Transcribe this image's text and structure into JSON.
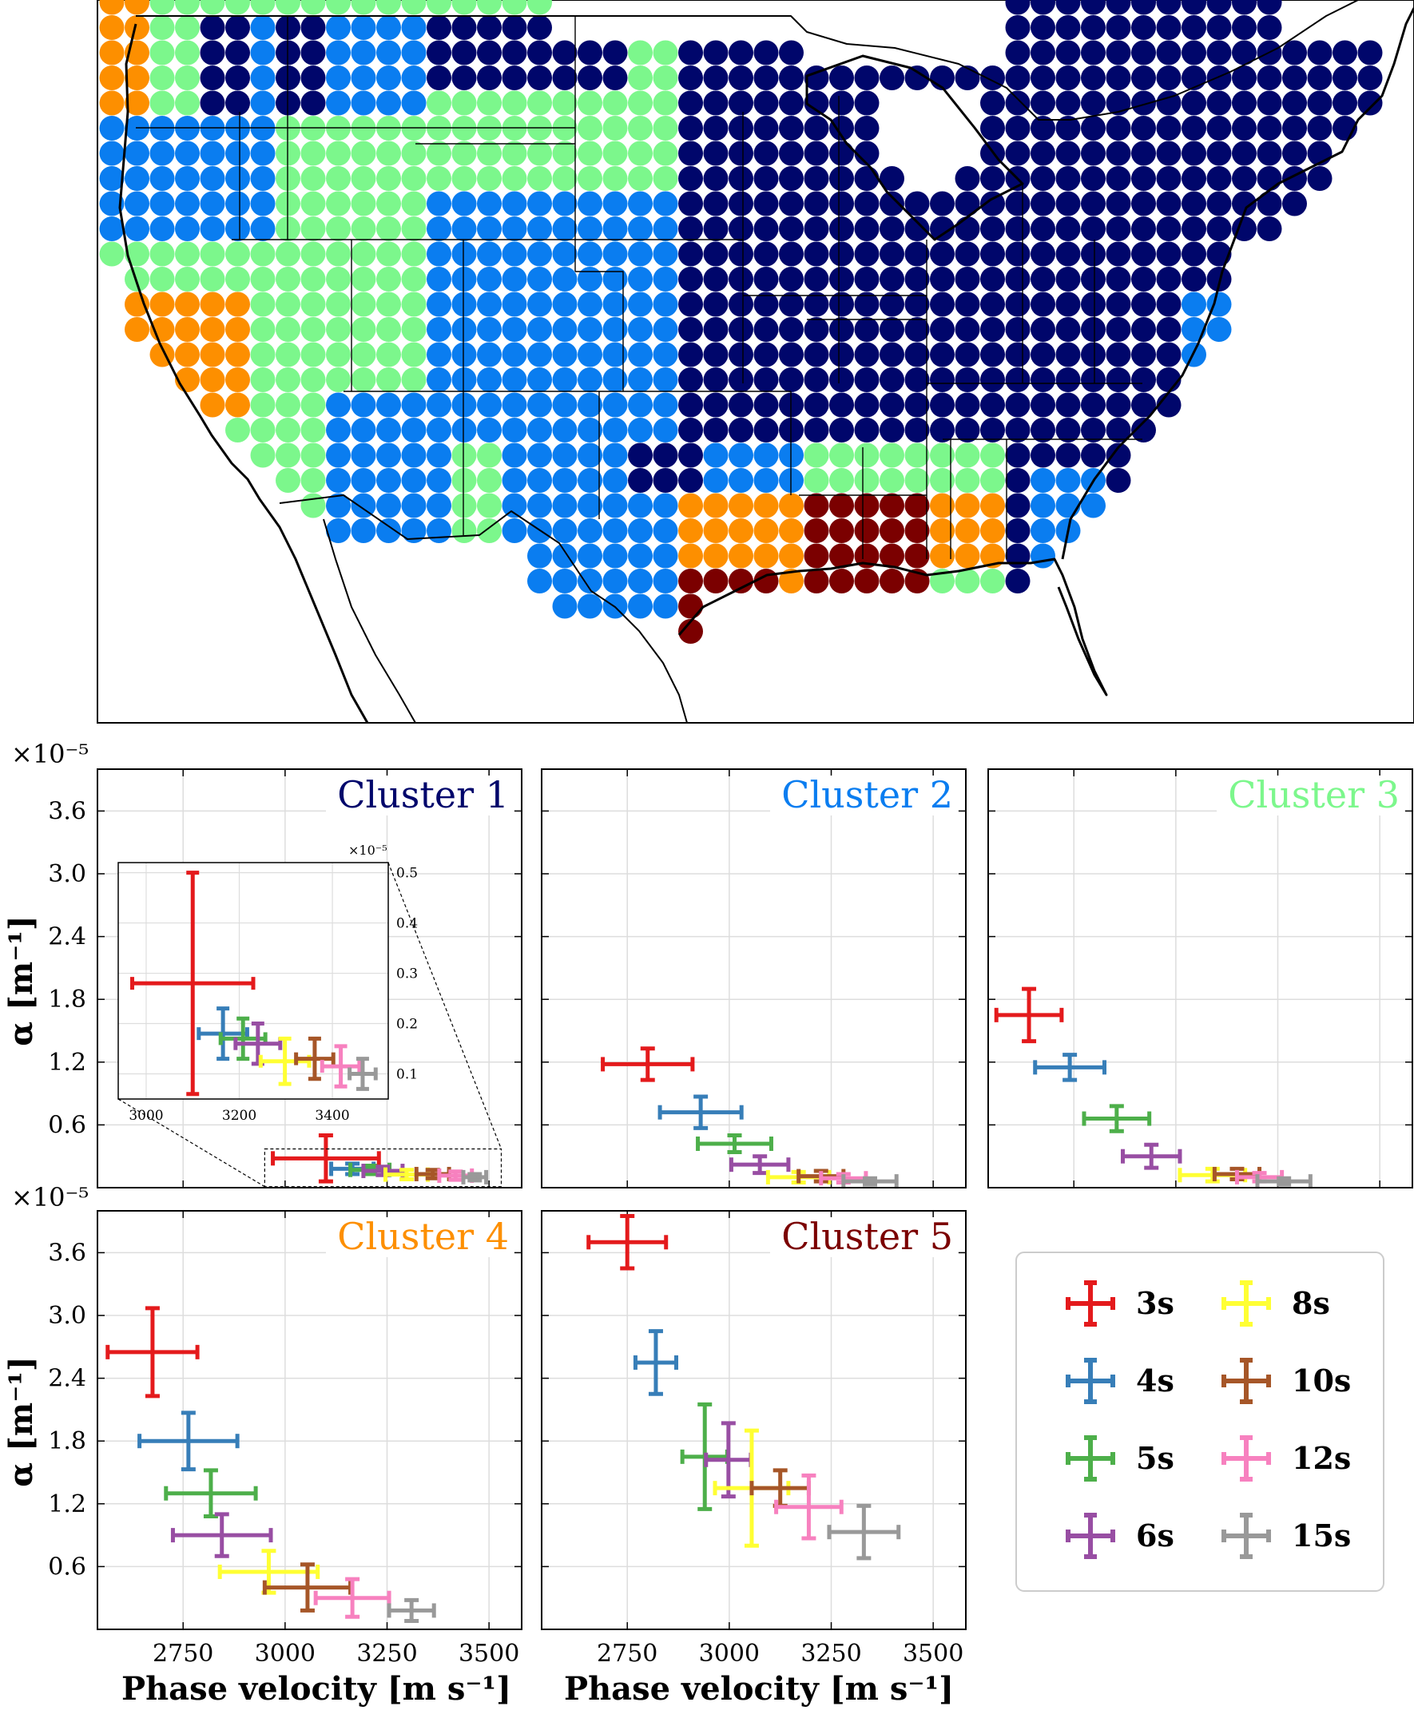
{
  "map": {
    "cluster_colors": {
      "1": "#00066b",
      "2": "#0a7df0",
      "3": "#7cf78c",
      "4": "#fd8f00",
      "5": "#7b0000"
    },
    "land_color": "#ffffff",
    "border_color": "#000000"
  },
  "axis_labels": {
    "x": "Phase velocity [m s⁻¹]",
    "y": "α [m⁻¹]",
    "offset": "×10⁻⁵"
  },
  "inset": {
    "offset": "×10⁻⁵",
    "xticks": [
      3000,
      3200,
      3400
    ],
    "yticks": [
      0.1,
      0.2,
      0.3,
      0.4,
      0.5
    ]
  },
  "legend": {
    "entries": [
      {
        "label": "3s",
        "color": "#e41a1c"
      },
      {
        "label": "4s",
        "color": "#377eb8"
      },
      {
        "label": "5s",
        "color": "#4daf4a"
      },
      {
        "label": "6s",
        "color": "#984ea3"
      },
      {
        "label": "8s",
        "color": "#ffff33"
      },
      {
        "label": "10s",
        "color": "#a65628"
      },
      {
        "label": "12s",
        "color": "#f781bf"
      },
      {
        "label": "15s",
        "color": "#999999"
      }
    ]
  },
  "chart_data": [
    {
      "type": "scatter",
      "title": "Cluster 1",
      "title_color": "#00066b",
      "xlim": [
        2540,
        3580
      ],
      "ylim": [
        0,
        4.0
      ],
      "xticks": [
        2750,
        3000,
        3250,
        3500
      ],
      "yticks": [
        0.6,
        1.2,
        1.8,
        2.4,
        3.0,
        3.6
      ],
      "y_unit_exponent": -5,
      "series": [
        {
          "name": "3s",
          "x": 3100,
          "y": 0.28,
          "xerr": 130,
          "yerr": 0.22
        },
        {
          "name": "4s",
          "x": 3165,
          "y": 0.18,
          "xerr": 52,
          "yerr": 0.05
        },
        {
          "name": "5s",
          "x": 3208,
          "y": 0.17,
          "xerr": 48,
          "yerr": 0.04
        },
        {
          "name": "6s",
          "x": 3240,
          "y": 0.16,
          "xerr": 48,
          "yerr": 0.04
        },
        {
          "name": "8s",
          "x": 3298,
          "y": 0.125,
          "xerr": 52,
          "yerr": 0.045
        },
        {
          "name": "10s",
          "x": 3362,
          "y": 0.13,
          "xerr": 40,
          "yerr": 0.04
        },
        {
          "name": "12s",
          "x": 3418,
          "y": 0.115,
          "xerr": 40,
          "yerr": 0.04
        },
        {
          "name": "15s",
          "x": 3465,
          "y": 0.1,
          "xerr": 28,
          "yerr": 0.03
        }
      ]
    },
    {
      "type": "scatter",
      "title": "Cluster 2",
      "title_color": "#0a7df0",
      "xlim": [
        2540,
        3580
      ],
      "ylim": [
        0,
        4.0
      ],
      "xticks": [
        2750,
        3000,
        3250,
        3500
      ],
      "yticks": [
        0.6,
        1.2,
        1.8,
        2.4,
        3.0,
        3.6
      ],
      "y_unit_exponent": -5,
      "series": [
        {
          "name": "3s",
          "x": 2800,
          "y": 1.18,
          "xerr": 110,
          "yerr": 0.15
        },
        {
          "name": "4s",
          "x": 2930,
          "y": 0.72,
          "xerr": 100,
          "yerr": 0.15
        },
        {
          "name": "5s",
          "x": 3013,
          "y": 0.42,
          "xerr": 90,
          "yerr": 0.08
        },
        {
          "name": "6s",
          "x": 3075,
          "y": 0.22,
          "xerr": 70,
          "yerr": 0.08
        },
        {
          "name": "8s",
          "x": 3170,
          "y": 0.1,
          "xerr": 75,
          "yerr": 0.05
        },
        {
          "name": "10s",
          "x": 3225,
          "y": 0.11,
          "xerr": 55,
          "yerr": 0.05
        },
        {
          "name": "12s",
          "x": 3280,
          "y": 0.09,
          "xerr": 55,
          "yerr": 0.04
        },
        {
          "name": "15s",
          "x": 3345,
          "y": 0.06,
          "xerr": 65,
          "yerr": 0.03
        }
      ]
    },
    {
      "type": "scatter",
      "title": "Cluster 3",
      "title_color": "#7cf78c",
      "xlim": [
        2540,
        3580
      ],
      "ylim": [
        0,
        4.0
      ],
      "xticks": [
        2750,
        3000,
        3250,
        3500
      ],
      "yticks": [
        0.6,
        1.2,
        1.8,
        2.4,
        3.0,
        3.6
      ],
      "y_unit_exponent": -5,
      "series": [
        {
          "name": "3s",
          "x": 2640,
          "y": 1.65,
          "xerr": 80,
          "yerr": 0.25
        },
        {
          "name": "4s",
          "x": 2740,
          "y": 1.15,
          "xerr": 85,
          "yerr": 0.12
        },
        {
          "name": "5s",
          "x": 2855,
          "y": 0.66,
          "xerr": 80,
          "yerr": 0.12
        },
        {
          "name": "6s",
          "x": 2940,
          "y": 0.3,
          "xerr": 70,
          "yerr": 0.11
        },
        {
          "name": "8s",
          "x": 3090,
          "y": 0.12,
          "xerr": 80,
          "yerr": 0.06
        },
        {
          "name": "10s",
          "x": 3150,
          "y": 0.13,
          "xerr": 55,
          "yerr": 0.05
        },
        {
          "name": "12s",
          "x": 3205,
          "y": 0.1,
          "xerr": 55,
          "yerr": 0.04
        },
        {
          "name": "15s",
          "x": 3265,
          "y": 0.06,
          "xerr": 65,
          "yerr": 0.03
        }
      ]
    },
    {
      "type": "scatter",
      "title": "Cluster 4",
      "title_color": "#fd8f00",
      "xlim": [
        2540,
        3580
      ],
      "ylim": [
        0,
        4.0
      ],
      "xticks": [
        2750,
        3000,
        3250,
        3500
      ],
      "yticks": [
        0.6,
        1.2,
        1.8,
        2.4,
        3.0,
        3.6
      ],
      "y_unit_exponent": -5,
      "series": [
        {
          "name": "3s",
          "x": 2675,
          "y": 2.65,
          "xerr": 110,
          "yerr": 0.42
        },
        {
          "name": "4s",
          "x": 2763,
          "y": 1.8,
          "xerr": 120,
          "yerr": 0.27
        },
        {
          "name": "5s",
          "x": 2818,
          "y": 1.3,
          "xerr": 110,
          "yerr": 0.22
        },
        {
          "name": "6s",
          "x": 2845,
          "y": 0.9,
          "xerr": 120,
          "yerr": 0.2
        },
        {
          "name": "8s",
          "x": 2960,
          "y": 0.55,
          "xerr": 120,
          "yerr": 0.2
        },
        {
          "name": "10s",
          "x": 3055,
          "y": 0.4,
          "xerr": 105,
          "yerr": 0.22
        },
        {
          "name": "12s",
          "x": 3165,
          "y": 0.3,
          "xerr": 90,
          "yerr": 0.18
        },
        {
          "name": "15s",
          "x": 3310,
          "y": 0.18,
          "xerr": 55,
          "yerr": 0.1
        }
      ]
    },
    {
      "type": "scatter",
      "title": "Cluster 5",
      "title_color": "#7b0000",
      "xlim": [
        2540,
        3580
      ],
      "ylim": [
        0,
        4.0
      ],
      "xticks": [
        2750,
        3000,
        3250,
        3500
      ],
      "yticks": [
        0.6,
        1.2,
        1.8,
        2.4,
        3.0,
        3.6
      ],
      "y_unit_exponent": -5,
      "series": [
        {
          "name": "3s",
          "x": 2750,
          "y": 3.7,
          "xerr": 95,
          "yerr": 0.25
        },
        {
          "name": "4s",
          "x": 2820,
          "y": 2.55,
          "xerr": 50,
          "yerr": 0.3
        },
        {
          "name": "5s",
          "x": 2940,
          "y": 1.65,
          "xerr": 55,
          "yerr": 0.5
        },
        {
          "name": "6s",
          "x": 2998,
          "y": 1.62,
          "xerr": 55,
          "yerr": 0.35
        },
        {
          "name": "8s",
          "x": 3055,
          "y": 1.35,
          "xerr": 90,
          "yerr": 0.55
        },
        {
          "name": "10s",
          "x": 3125,
          "y": 1.35,
          "xerr": 70,
          "yerr": 0.17
        },
        {
          "name": "12s",
          "x": 3195,
          "y": 1.17,
          "xerr": 80,
          "yerr": 0.3
        },
        {
          "name": "15s",
          "x": 3330,
          "y": 0.93,
          "xerr": 85,
          "yerr": 0.25
        }
      ]
    }
  ]
}
